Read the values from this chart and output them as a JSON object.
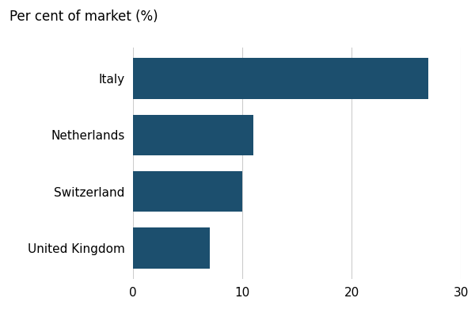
{
  "title": "Per cent of market (%)",
  "categories": [
    "United Kingdom",
    "Switzerland",
    "Netherlands",
    "Italy"
  ],
  "values": [
    7,
    10,
    11,
    27
  ],
  "bar_color": "#1c4f6e",
  "xlim": [
    0,
    30
  ],
  "xticks": [
    0,
    10,
    20,
    30
  ],
  "title_fontsize": 12,
  "tick_fontsize": 11,
  "label_fontsize": 11,
  "bar_height": 0.72,
  "background_color": "#ffffff",
  "grid_color": "#cccccc"
}
